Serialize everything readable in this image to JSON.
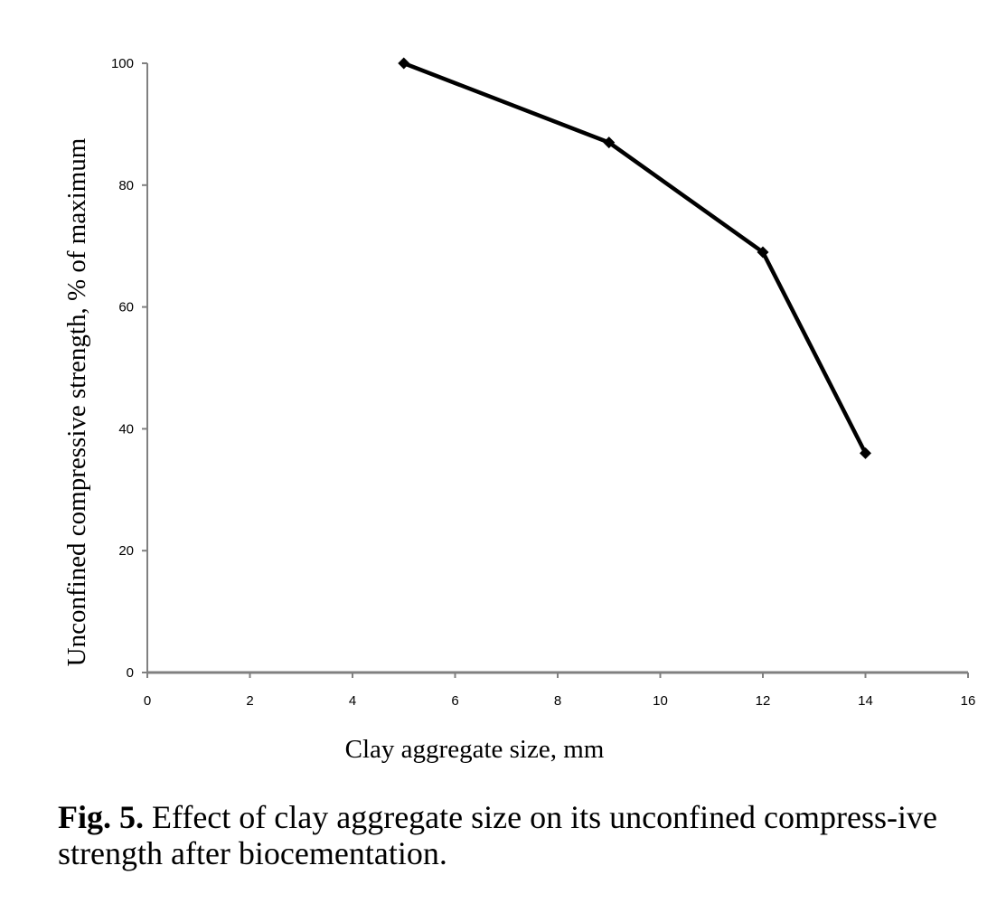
{
  "chart_data": {
    "type": "line",
    "x": [
      5,
      9,
      12,
      14
    ],
    "series": [
      {
        "values": [
          100,
          87,
          69,
          36
        ]
      }
    ],
    "xlabel": "Clay aggregate size, mm",
    "ylabel": "Unconfined compressive strength, % of maximum",
    "xlim": [
      0,
      16
    ],
    "ylim": [
      0,
      100
    ],
    "xticks": [
      0,
      2,
      4,
      6,
      8,
      10,
      12,
      14,
      16
    ],
    "yticks": [
      0,
      20,
      40,
      60,
      80,
      100
    ],
    "grid": false,
    "marker": "diamond",
    "line_color": "#000000"
  },
  "caption": {
    "label": "Fig. 5.",
    "text": " Effect of clay aggregate size on its unconfined compress-ive strength after biocementation."
  }
}
